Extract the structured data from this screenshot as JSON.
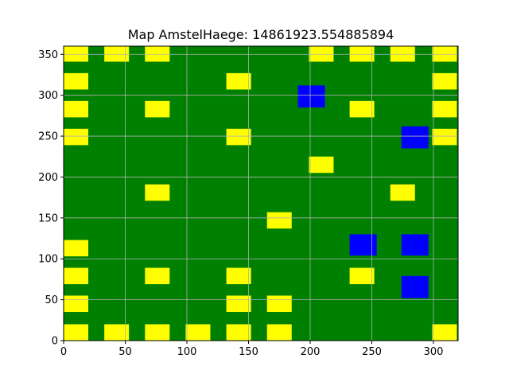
{
  "chart_data": {
    "type": "heatmap",
    "title": "Map AmstelHaege: 14861923.554885894",
    "xlabel": "",
    "ylabel": "",
    "xlim": [
      0,
      320
    ],
    "ylim": [
      0,
      360
    ],
    "xticks": [
      0,
      50,
      100,
      150,
      200,
      250,
      300
    ],
    "yticks": [
      0,
      50,
      100,
      150,
      200,
      250,
      300,
      350
    ],
    "xtick_labels": [
      "0",
      "50",
      "100",
      "150",
      "200",
      "250",
      "300"
    ],
    "ytick_labels": [
      "0",
      "50",
      "100",
      "150",
      "200",
      "250",
      "300",
      "350"
    ],
    "grid": true,
    "colors": {
      "background": "#008000",
      "house": "#ffff00",
      "water": "#0000ff",
      "grid": "#b0b0b0"
    },
    "houses": [
      {
        "x": [
          0,
          20
        ],
        "y": [
          0,
          20
        ]
      },
      {
        "x": [
          33,
          53
        ],
        "y": [
          0,
          20
        ]
      },
      {
        "x": [
          66,
          86
        ],
        "y": [
          0,
          20
        ]
      },
      {
        "x": [
          99,
          119
        ],
        "y": [
          0,
          20
        ]
      },
      {
        "x": [
          132,
          152
        ],
        "y": [
          0,
          20
        ]
      },
      {
        "x": [
          165,
          185
        ],
        "y": [
          0,
          20
        ]
      },
      {
        "x": [
          299,
          319
        ],
        "y": [
          0,
          20
        ]
      },
      {
        "x": [
          0,
          20
        ],
        "y": [
          35,
          55
        ]
      },
      {
        "x": [
          132,
          152
        ],
        "y": [
          35,
          55
        ]
      },
      {
        "x": [
          165,
          185
        ],
        "y": [
          35,
          55
        ]
      },
      {
        "x": [
          0,
          20
        ],
        "y": [
          69,
          89
        ]
      },
      {
        "x": [
          66,
          86
        ],
        "y": [
          69,
          89
        ]
      },
      {
        "x": [
          132,
          152
        ],
        "y": [
          69,
          89
        ]
      },
      {
        "x": [
          232,
          252
        ],
        "y": [
          69,
          89
        ]
      },
      {
        "x": [
          0,
          20
        ],
        "y": [
          103,
          123
        ]
      },
      {
        "x": [
          165,
          185
        ],
        "y": [
          137,
          157
        ]
      },
      {
        "x": [
          66,
          86
        ],
        "y": [
          171,
          191
        ]
      },
      {
        "x": [
          265,
          285
        ],
        "y": [
          171,
          191
        ]
      },
      {
        "x": [
          199,
          219
        ],
        "y": [
          205,
          225
        ]
      },
      {
        "x": [
          0,
          20
        ],
        "y": [
          239,
          259
        ]
      },
      {
        "x": [
          132,
          152
        ],
        "y": [
          239,
          259
        ]
      },
      {
        "x": [
          299,
          319
        ],
        "y": [
          239,
          259
        ]
      },
      {
        "x": [
          0,
          20
        ],
        "y": [
          273,
          293
        ]
      },
      {
        "x": [
          66,
          86
        ],
        "y": [
          273,
          293
        ]
      },
      {
        "x": [
          232,
          252
        ],
        "y": [
          273,
          293
        ]
      },
      {
        "x": [
          299,
          319
        ],
        "y": [
          273,
          293
        ]
      },
      {
        "x": [
          0,
          20
        ],
        "y": [
          307,
          327
        ]
      },
      {
        "x": [
          132,
          152
        ],
        "y": [
          307,
          327
        ]
      },
      {
        "x": [
          299,
          319
        ],
        "y": [
          307,
          327
        ]
      },
      {
        "x": [
          0,
          20
        ],
        "y": [
          341,
          361
        ]
      },
      {
        "x": [
          33,
          53
        ],
        "y": [
          341,
          361
        ]
      },
      {
        "x": [
          66,
          86
        ],
        "y": [
          341,
          361
        ]
      },
      {
        "x": [
          199,
          219
        ],
        "y": [
          341,
          361
        ]
      },
      {
        "x": [
          232,
          252
        ],
        "y": [
          341,
          361
        ]
      },
      {
        "x": [
          265,
          285
        ],
        "y": [
          341,
          361
        ]
      },
      {
        "x": [
          299,
          319
        ],
        "y": [
          341,
          361
        ]
      }
    ],
    "water": [
      {
        "x": [
          190,
          212
        ],
        "y": [
          285,
          312
        ]
      },
      {
        "x": [
          274,
          296
        ],
        "y": [
          235,
          262
        ]
      },
      {
        "x": [
          232,
          254
        ],
        "y": [
          104,
          130
        ]
      },
      {
        "x": [
          274,
          296
        ],
        "y": [
          104,
          130
        ]
      },
      {
        "x": [
          274,
          296
        ],
        "y": [
          52,
          79
        ]
      }
    ]
  }
}
